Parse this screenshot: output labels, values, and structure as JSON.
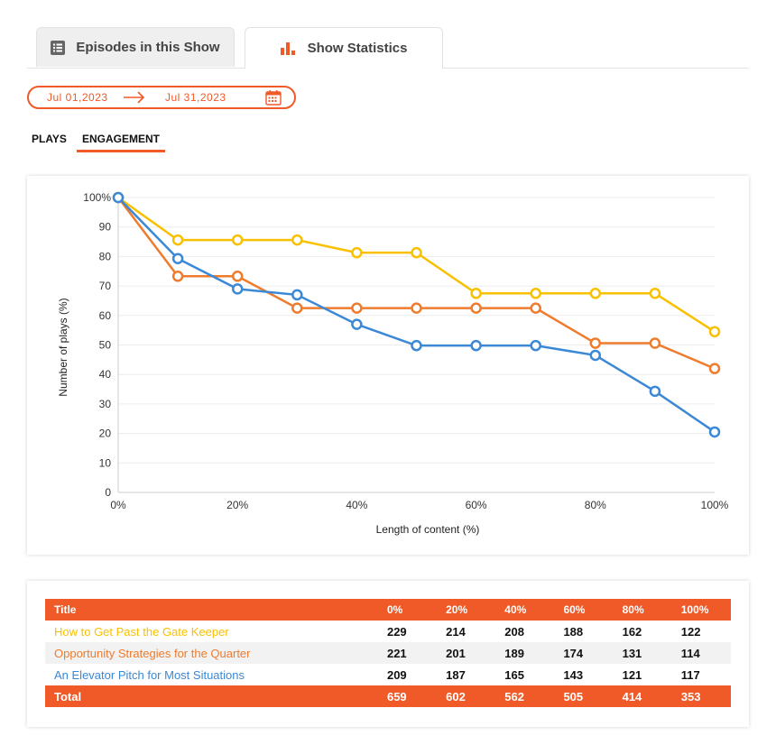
{
  "tabs": {
    "episodes_label": "Episodes in this Show",
    "stats_label": "Show Statistics"
  },
  "date_range": {
    "start": "Jul 01,2023",
    "end": "Jul 31,2023"
  },
  "subtabs": {
    "plays_label": "PLAYS",
    "engagement_label": "ENGAGEMENT"
  },
  "colors": {
    "accent": "#f05a28",
    "yellow": "#f9c000",
    "orange": "#ef7b2d",
    "blue": "#3a88d6"
  },
  "chart_data": {
    "type": "line",
    "xlabel": "Length of content (%)",
    "ylabel": "Number of plays (%)",
    "ylim": [
      0,
      100
    ],
    "xlim": [
      0,
      100
    ],
    "xticks": [
      "0%",
      "20%",
      "40%",
      "60%",
      "80%",
      "100%"
    ],
    "yticks": [
      "0",
      "10",
      "20",
      "30",
      "40",
      "50",
      "60",
      "70",
      "80",
      "90",
      "100%"
    ],
    "grid": true,
    "x": [
      0,
      10,
      20,
      30,
      40,
      50,
      60,
      70,
      80,
      90,
      100
    ],
    "series": [
      {
        "color": "#f9c000",
        "values": [
          100,
          85.6,
          85.6,
          85.6,
          81.3,
          81.3,
          67.5,
          67.5,
          67.5,
          67.5,
          54.5
        ]
      },
      {
        "color": "#ef7b2d",
        "values": [
          100,
          73.3,
          73.3,
          62.5,
          62.5,
          62.5,
          62.5,
          62.5,
          50.6,
          50.6,
          42.0
        ]
      },
      {
        "color": "#3a88d6",
        "values": [
          100,
          79.3,
          69.0,
          67.0,
          57.0,
          49.8,
          49.8,
          49.8,
          46.5,
          34.3,
          20.5
        ]
      }
    ]
  },
  "table": {
    "headers": [
      "Title",
      "0%",
      "20%",
      "40%",
      "60%",
      "80%",
      "100%"
    ],
    "rows": [
      {
        "title": "How to Get Past the Gate Keeper",
        "color": "#f9c000",
        "values": [
          "229",
          "214",
          "208",
          "188",
          "162",
          "122"
        ]
      },
      {
        "title": "Opportunity Strategies for the Quarter",
        "color": "#ef7b2d",
        "values": [
          "221",
          "201",
          "189",
          "174",
          "131",
          "114"
        ]
      },
      {
        "title": "An Elevator Pitch for Most Situations",
        "color": "#3a88d6",
        "values": [
          "209",
          "187",
          "165",
          "143",
          "121",
          "117"
        ]
      }
    ],
    "total": {
      "label": "Total",
      "values": [
        "659",
        "602",
        "562",
        "505",
        "414",
        "353"
      ]
    }
  }
}
